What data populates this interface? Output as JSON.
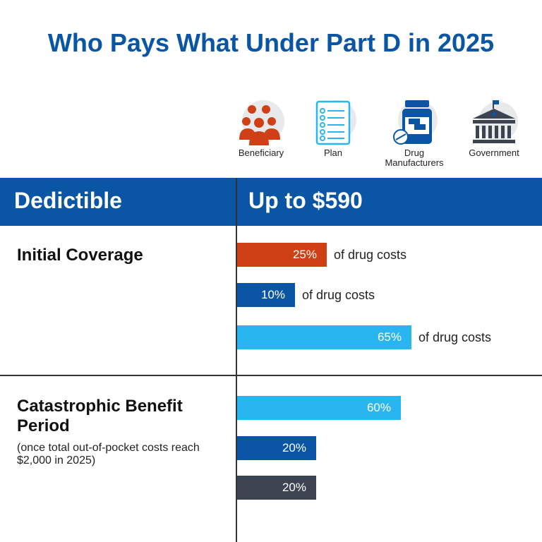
{
  "title": "Who Pays What Under Part D in 2025",
  "legend": [
    {
      "label": "Beneficiary",
      "icon": "people-group-icon",
      "color": "#cf4016"
    },
    {
      "label": "Plan",
      "icon": "checklist-icon",
      "color": "#29b6f0"
    },
    {
      "label": "Drug Manufacturers",
      "icon": "medicine-bottle-icon",
      "color": "#0a56a4"
    },
    {
      "label": "Government",
      "icon": "government-building-icon",
      "color": "#3b4450"
    }
  ],
  "band": {
    "left": "Dedictible",
    "right": "Up to $590"
  },
  "sections": {
    "initial": "Initial Coverage",
    "catastrophic": "Catastrophic Benefit Period",
    "catastrophic_note": "(once total out-of-pocket costs reach $2,000 in 2025)"
  },
  "chart_data": {
    "type": "bar",
    "groups": [
      {
        "name": "Initial Coverage",
        "bars": [
          {
            "payer": "Beneficiary",
            "value": 25,
            "label": "25%",
            "suffix": "of drug costs",
            "color": "#cf4016"
          },
          {
            "payer": "Drug Manufacturers",
            "value": 10,
            "label": "10%",
            "suffix": "of drug costs",
            "color": "#0a56a4"
          },
          {
            "payer": "Plan",
            "value": 65,
            "label": "65%",
            "suffix": "of drug costs",
            "color": "#29b6f0"
          }
        ]
      },
      {
        "name": "Catastrophic Benefit Period",
        "bars": [
          {
            "payer": "Plan",
            "value": 60,
            "label": "60%",
            "suffix": "",
            "color": "#29b6f0"
          },
          {
            "payer": "Drug Manufacturers",
            "value": 20,
            "label": "20%",
            "suffix": "",
            "color": "#0a56a4"
          },
          {
            "payer": "Government",
            "value": 20,
            "label": "20%",
            "suffix": "",
            "color": "#3b4450"
          }
        ]
      }
    ]
  }
}
